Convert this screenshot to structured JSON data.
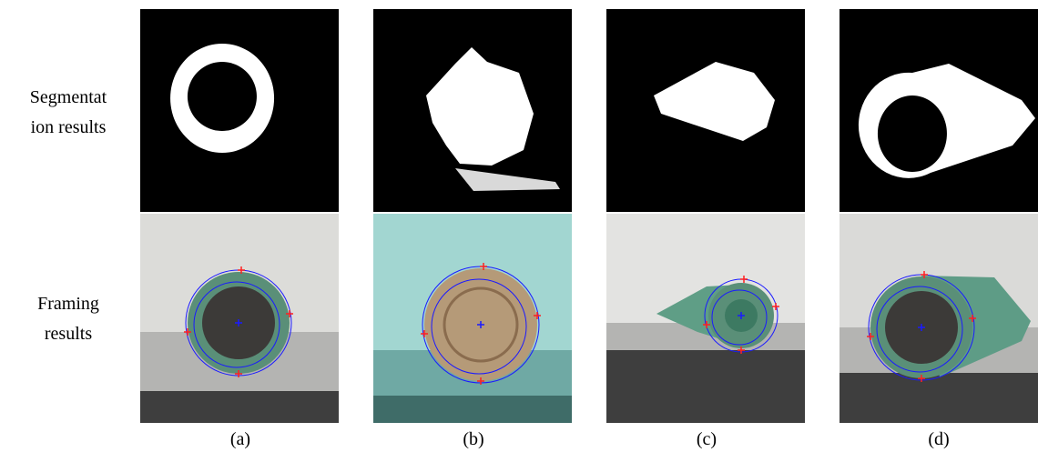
{
  "row_labels": [
    [
      "Segmentat",
      "ion results"
    ],
    [
      "Framing",
      "results"
    ]
  ],
  "captions": [
    "(a)",
    "(b)",
    "(c)",
    "(d)"
  ]
}
